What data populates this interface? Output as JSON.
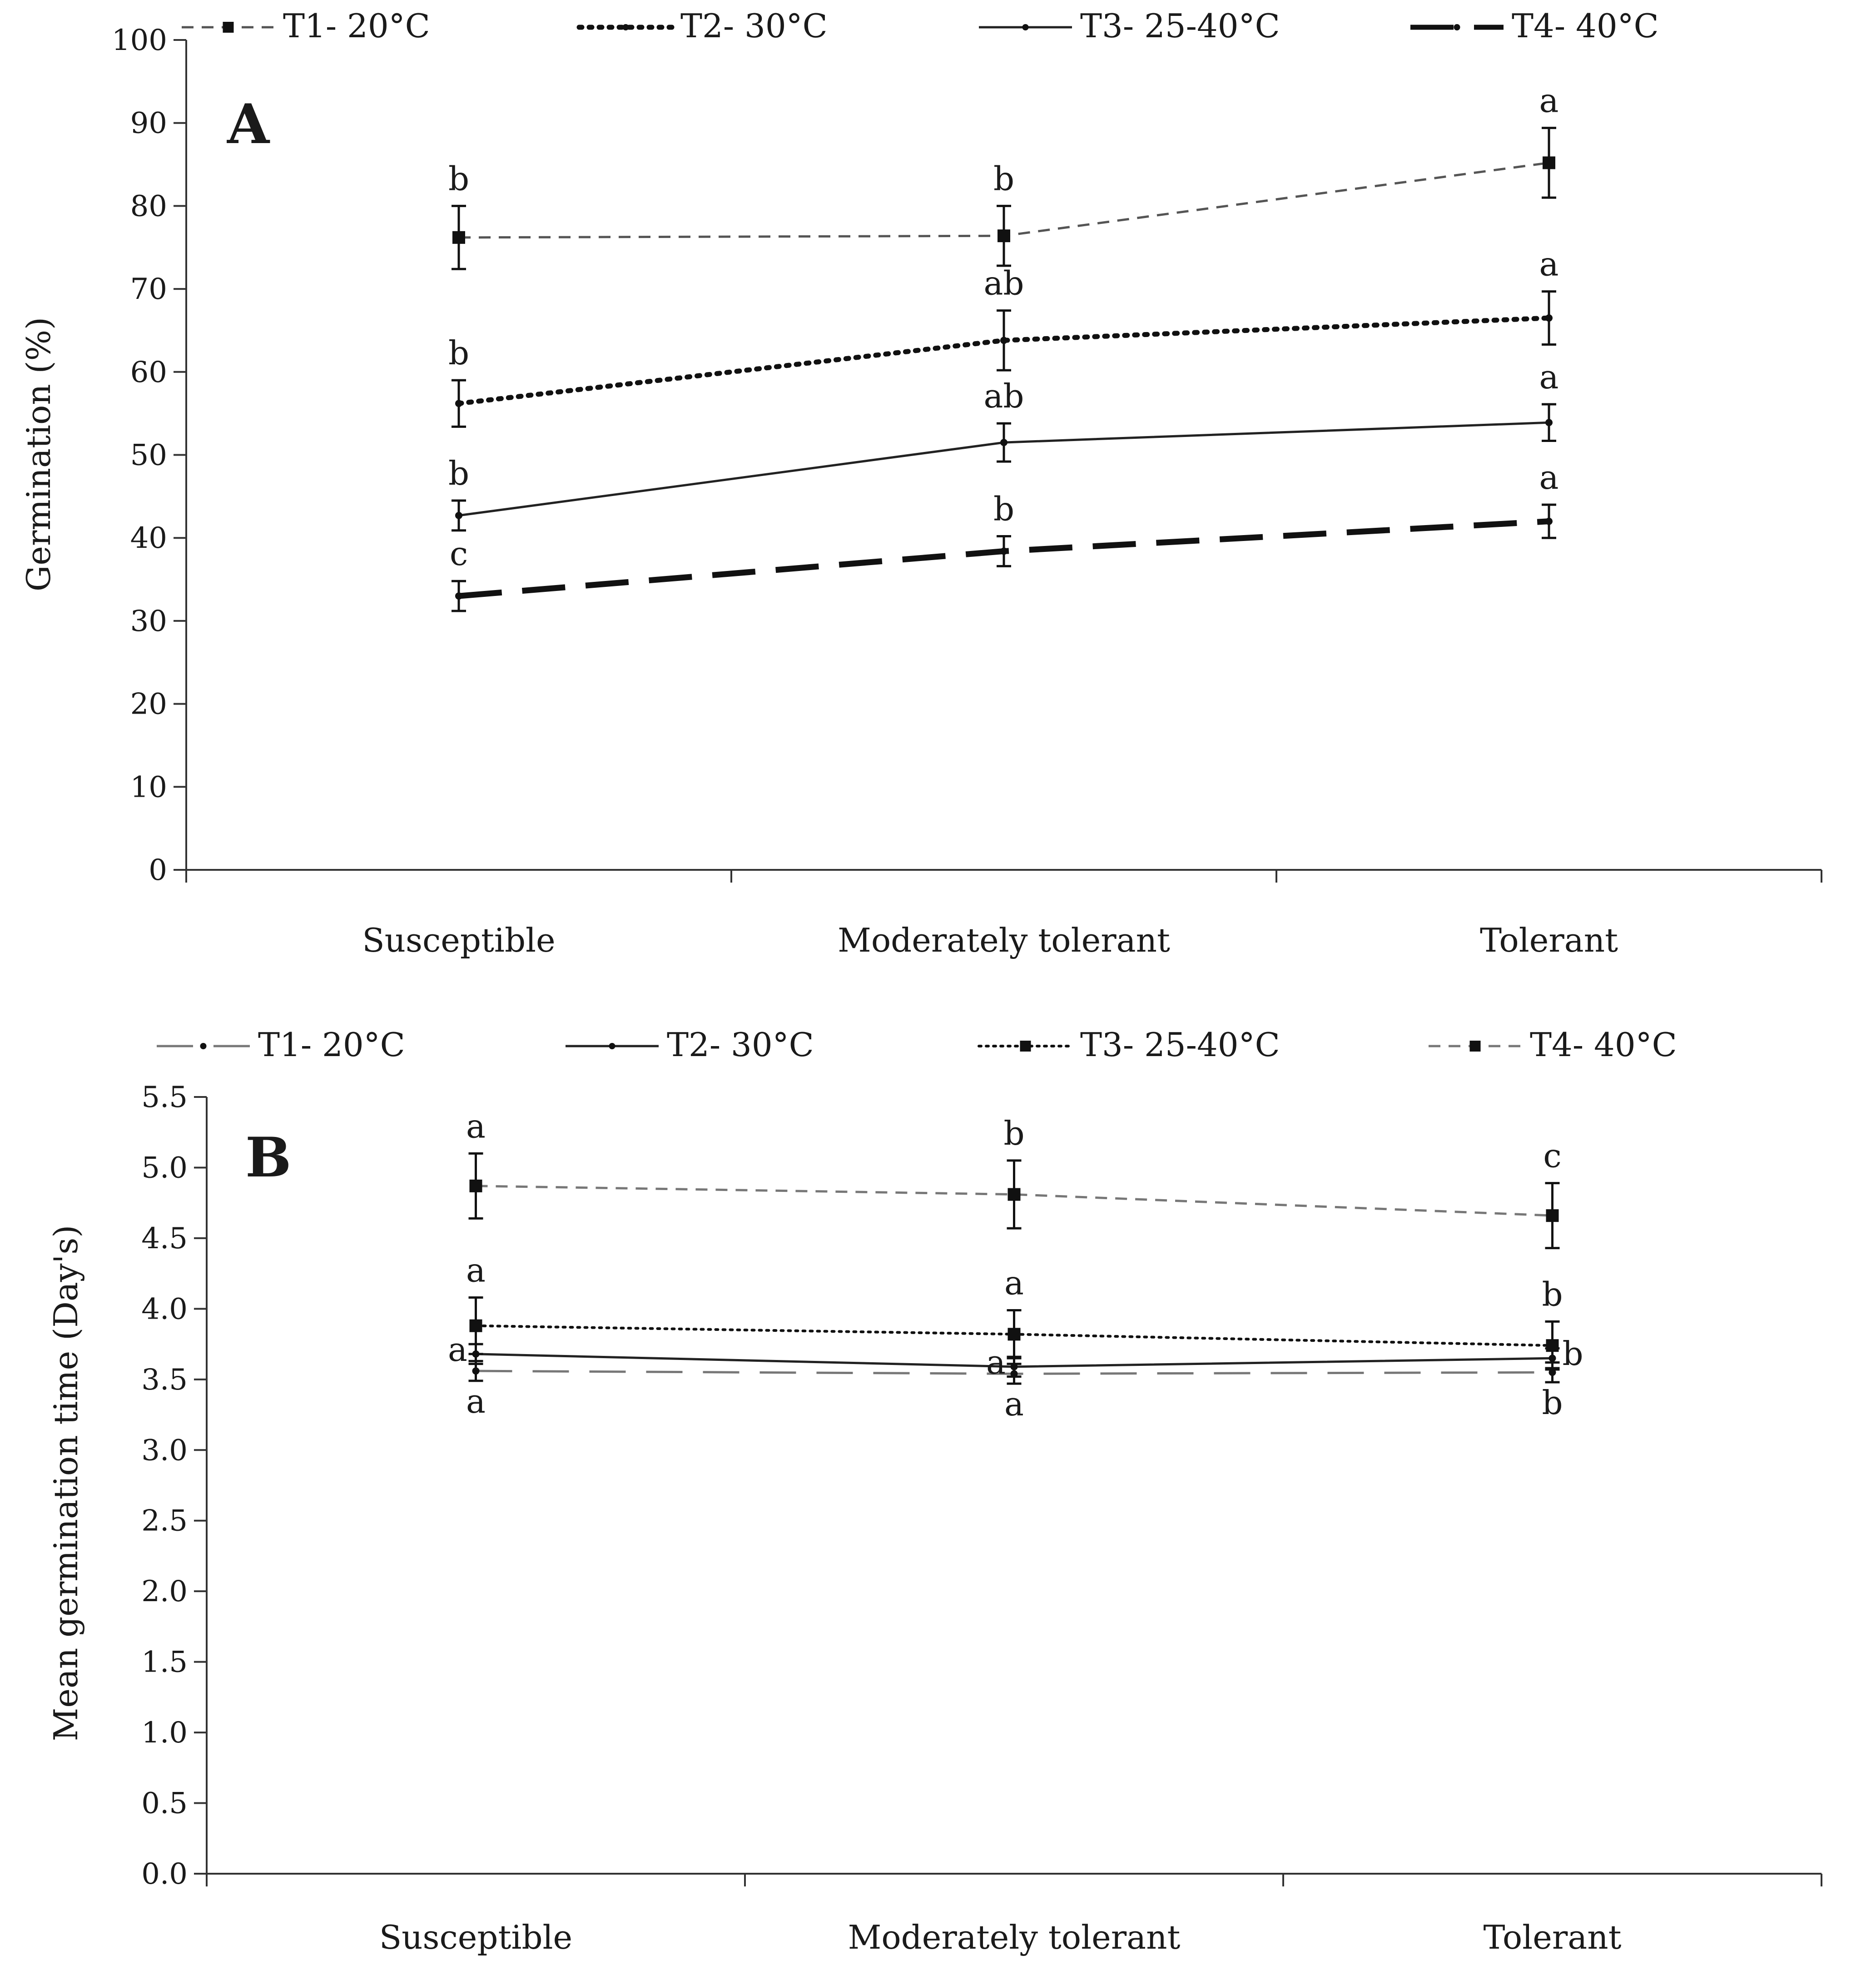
{
  "chart_data": [
    {
      "type": "line",
      "panel_label": "A",
      "title": "",
      "xlabel": "",
      "ylabel": "Germination (%)",
      "ylim": [
        0,
        100
      ],
      "yticks": [
        "0",
        "10",
        "20",
        "30",
        "40",
        "50",
        "60",
        "70",
        "80",
        "90",
        "100"
      ],
      "categories": [
        "Susceptible",
        "Moderately tolerant",
        "Tolerant"
      ],
      "grid": false,
      "legend_position": "top",
      "series": [
        {
          "name": "T1- 20°C",
          "values": [
            76.2,
            76.4,
            85.2
          ],
          "errors": [
            3.8,
            3.6,
            4.2
          ],
          "letters": [
            "b",
            "b",
            "a"
          ],
          "line_style": "dashed-thin",
          "marker": "square",
          "color": "#555555"
        },
        {
          "name": "T2- 30°C",
          "values": [
            56.2,
            63.8,
            66.5
          ],
          "errors": [
            2.8,
            3.6,
            3.2
          ],
          "letters": [
            "b",
            "ab",
            "a"
          ],
          "line_style": "dotted-thick",
          "marker": "dot",
          "color": "#111111"
        },
        {
          "name": "T3- 25-40°C",
          "values": [
            42.7,
            51.5,
            53.9
          ],
          "errors": [
            1.8,
            2.3,
            2.2
          ],
          "letters": [
            "b",
            "ab",
            "a"
          ],
          "line_style": "solid",
          "marker": "dot",
          "color": "#222222"
        },
        {
          "name": "T4- 40°C",
          "values": [
            33.0,
            38.4,
            42.0
          ],
          "errors": [
            1.8,
            1.8,
            2.0
          ],
          "letters": [
            "c",
            "b",
            "a"
          ],
          "line_style": "long-dash-thick",
          "marker": "dot",
          "color": "#111111"
        }
      ]
    },
    {
      "type": "line",
      "panel_label": "B",
      "title": "",
      "xlabel": "",
      "ylabel": "Mean germination time (Day's)",
      "ylim": [
        0,
        5.5
      ],
      "yticks": [
        "0.0",
        "0.5",
        "1.0",
        "1.5",
        "2.0",
        "2.5",
        "3.0",
        "3.5",
        "4.0",
        "4.5",
        "5.0",
        "5.5"
      ],
      "categories": [
        "Susceptible",
        "Moderately tolerant",
        "Tolerant"
      ],
      "grid": false,
      "legend_position": "top",
      "series": [
        {
          "name": "T1- 20°C",
          "values": [
            3.56,
            3.54,
            3.55
          ],
          "errors": [
            0.07,
            0.07,
            0.07
          ],
          "letters": [
            "a",
            "a",
            "b"
          ],
          "line_style": "long-dash-grey",
          "marker": "dot",
          "color": "#777777"
        },
        {
          "name": "T2- 30°C",
          "values": [
            3.68,
            3.59,
            3.65
          ],
          "errors": [
            0.07,
            0.07,
            0.07
          ],
          "letters": [
            "a",
            "a",
            "b"
          ],
          "line_style": "solid",
          "marker": "dot",
          "color": "#222222"
        },
        {
          "name": "T3- 25-40°C",
          "values": [
            3.88,
            3.82,
            3.74
          ],
          "errors": [
            0.2,
            0.17,
            0.17
          ],
          "letters": [
            "a",
            "a",
            "b"
          ],
          "line_style": "dotted",
          "marker": "square",
          "color": "#111111"
        },
        {
          "name": "T4- 40°C",
          "values": [
            4.87,
            4.81,
            4.66
          ],
          "errors": [
            0.23,
            0.24,
            0.23
          ],
          "letters": [
            "a",
            "b",
            "c"
          ],
          "line_style": "dashed-grey",
          "marker": "square",
          "color": "#777777"
        }
      ]
    }
  ]
}
